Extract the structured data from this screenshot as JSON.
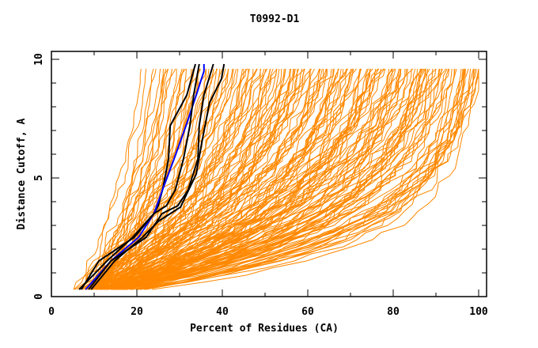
{
  "chart_data": {
    "type": "line",
    "title": "T0992-D1",
    "xlabel": "Percent of Residues (CA)",
    "ylabel": "Distance Cutoff, A",
    "xlim": [
      0,
      100
    ],
    "ylim": [
      0,
      10
    ],
    "x_major_ticks": [
      0,
      20,
      40,
      60,
      80,
      100
    ],
    "x_minor_ticks": [
      10,
      30,
      50,
      70,
      90
    ],
    "y_major_ticks": [
      0,
      5,
      10
    ],
    "y_minor_ticks": [
      1,
      2,
      3,
      4,
      6,
      7,
      8,
      9
    ],
    "x_tick_labels": [
      "0",
      "20",
      "40",
      "60",
      "80",
      "100"
    ],
    "y_tick_labels": [
      "0",
      "5",
      "10"
    ],
    "grid": false,
    "legend": "none",
    "colors": {
      "models": "#ff8800",
      "highlight": "#000000",
      "reference": "#0000ff",
      "frame": "#000000"
    },
    "highlight_series": [
      {
        "name": "black-1",
        "color": "#000000",
        "points": [
          [
            6.5,
            0.3
          ],
          [
            13,
            1.5
          ],
          [
            19,
            2.5
          ],
          [
            24,
            3.5
          ],
          [
            25,
            3.83
          ],
          [
            26,
            4.5
          ],
          [
            27.4,
            5.8
          ],
          [
            27.8,
            7.2
          ],
          [
            31.7,
            8.5
          ],
          [
            33.7,
            9.8
          ]
        ]
      },
      {
        "name": "blue",
        "color": "#0000ff",
        "points": [
          [
            8,
            0.3
          ],
          [
            13.9,
            1.5
          ],
          [
            20.4,
            2.5
          ],
          [
            24,
            3.5
          ],
          [
            26,
            4.5
          ],
          [
            28.7,
            5.8
          ],
          [
            31.5,
            7.2
          ],
          [
            33.9,
            8.5
          ],
          [
            35.7,
            9.5
          ],
          [
            35.7,
            9.8
          ]
        ]
      },
      {
        "name": "black-2",
        "color": "#000000",
        "points": [
          [
            7,
            0.3
          ],
          [
            11.1,
            1.5
          ],
          [
            19.4,
            2.5
          ],
          [
            24,
            3.5
          ],
          [
            26.9,
            3.83
          ],
          [
            29,
            4.5
          ],
          [
            30.9,
            5.8
          ],
          [
            32.4,
            7.2
          ],
          [
            33.3,
            8.5
          ],
          [
            34.6,
            9.8
          ]
        ]
      },
      {
        "name": "black-3",
        "color": "#000000",
        "points": [
          [
            8.7,
            0.3
          ],
          [
            13.9,
            1.5
          ],
          [
            22.2,
            2.5
          ],
          [
            25.9,
            3.5
          ],
          [
            29.6,
            3.83
          ],
          [
            32,
            4.5
          ],
          [
            34.3,
            5.8
          ],
          [
            34.6,
            7.2
          ],
          [
            35.7,
            8.5
          ],
          [
            37.9,
            9.8
          ]
        ]
      },
      {
        "name": "black-4",
        "color": "#000000",
        "points": [
          [
            9.3,
            0.3
          ],
          [
            14.8,
            1.5
          ],
          [
            21.3,
            2.5
          ],
          [
            25,
            3.17
          ],
          [
            30.2,
            3.77
          ],
          [
            33.9,
            5.17
          ],
          [
            35.2,
            6.5
          ],
          [
            37,
            8.17
          ],
          [
            39.8,
            9.17
          ],
          [
            40.4,
            9.8
          ]
        ]
      }
    ],
    "model_series_count": 180
  }
}
